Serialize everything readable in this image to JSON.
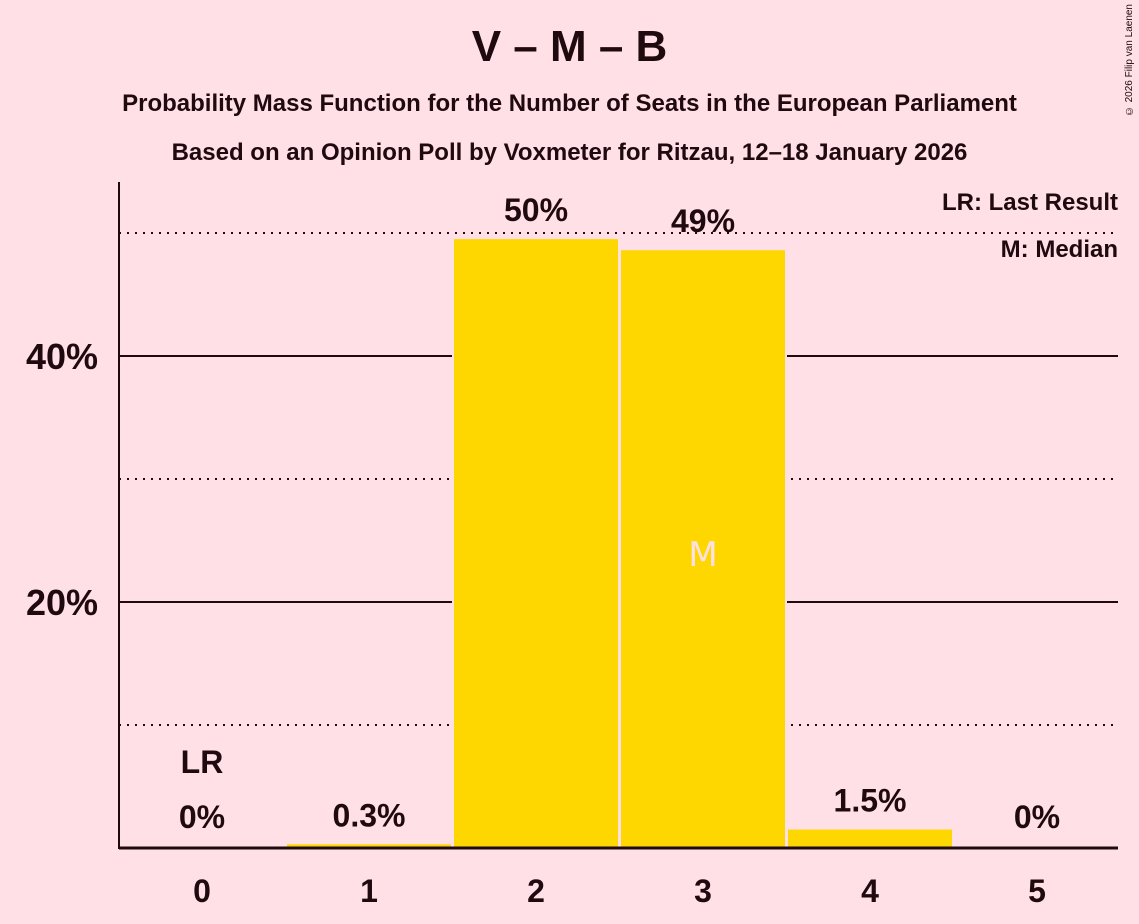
{
  "header": {
    "title": "V – M – B",
    "subtitle": "Probability Mass Function for the Number of Seats in the European Parliament",
    "source": "Based on an Opinion Poll by Voxmeter for Ritzau, 12–18 January 2026",
    "copyright": "© 2026 Filip van Laenen"
  },
  "legend": {
    "lr": "LR: Last Result",
    "m": "M: Median"
  },
  "colors": {
    "background": "#FFE0E6",
    "bar": "#FFD700",
    "text": "#1F0A10",
    "median_marker": "#FFE0E6"
  },
  "chart_data": {
    "type": "bar",
    "title": "V – M – B",
    "subtitle": "Probability Mass Function for the Number of Seats in the European Parliament",
    "categories": [
      "0",
      "1",
      "2",
      "3",
      "4",
      "5"
    ],
    "values": [
      0,
      0.3,
      49.5,
      48.6,
      1.5,
      0
    ],
    "value_labels": [
      "0%",
      "0.3%",
      "50%",
      "49%",
      "1.5%",
      "0%"
    ],
    "xlabel": "",
    "ylabel": "",
    "ylim": [
      0,
      54
    ],
    "yticks": [
      {
        "value": 20,
        "label": "20%"
      },
      {
        "value": 40,
        "label": "40%"
      }
    ],
    "gridlines": {
      "solid": [
        20,
        40
      ],
      "dotted": [
        10,
        30,
        50
      ]
    },
    "annotations": [
      {
        "category": "0",
        "text": "LR",
        "meaning": "Last Result"
      },
      {
        "category": "3",
        "text": "M",
        "meaning": "Median"
      }
    ],
    "legend_position": "top-right"
  }
}
